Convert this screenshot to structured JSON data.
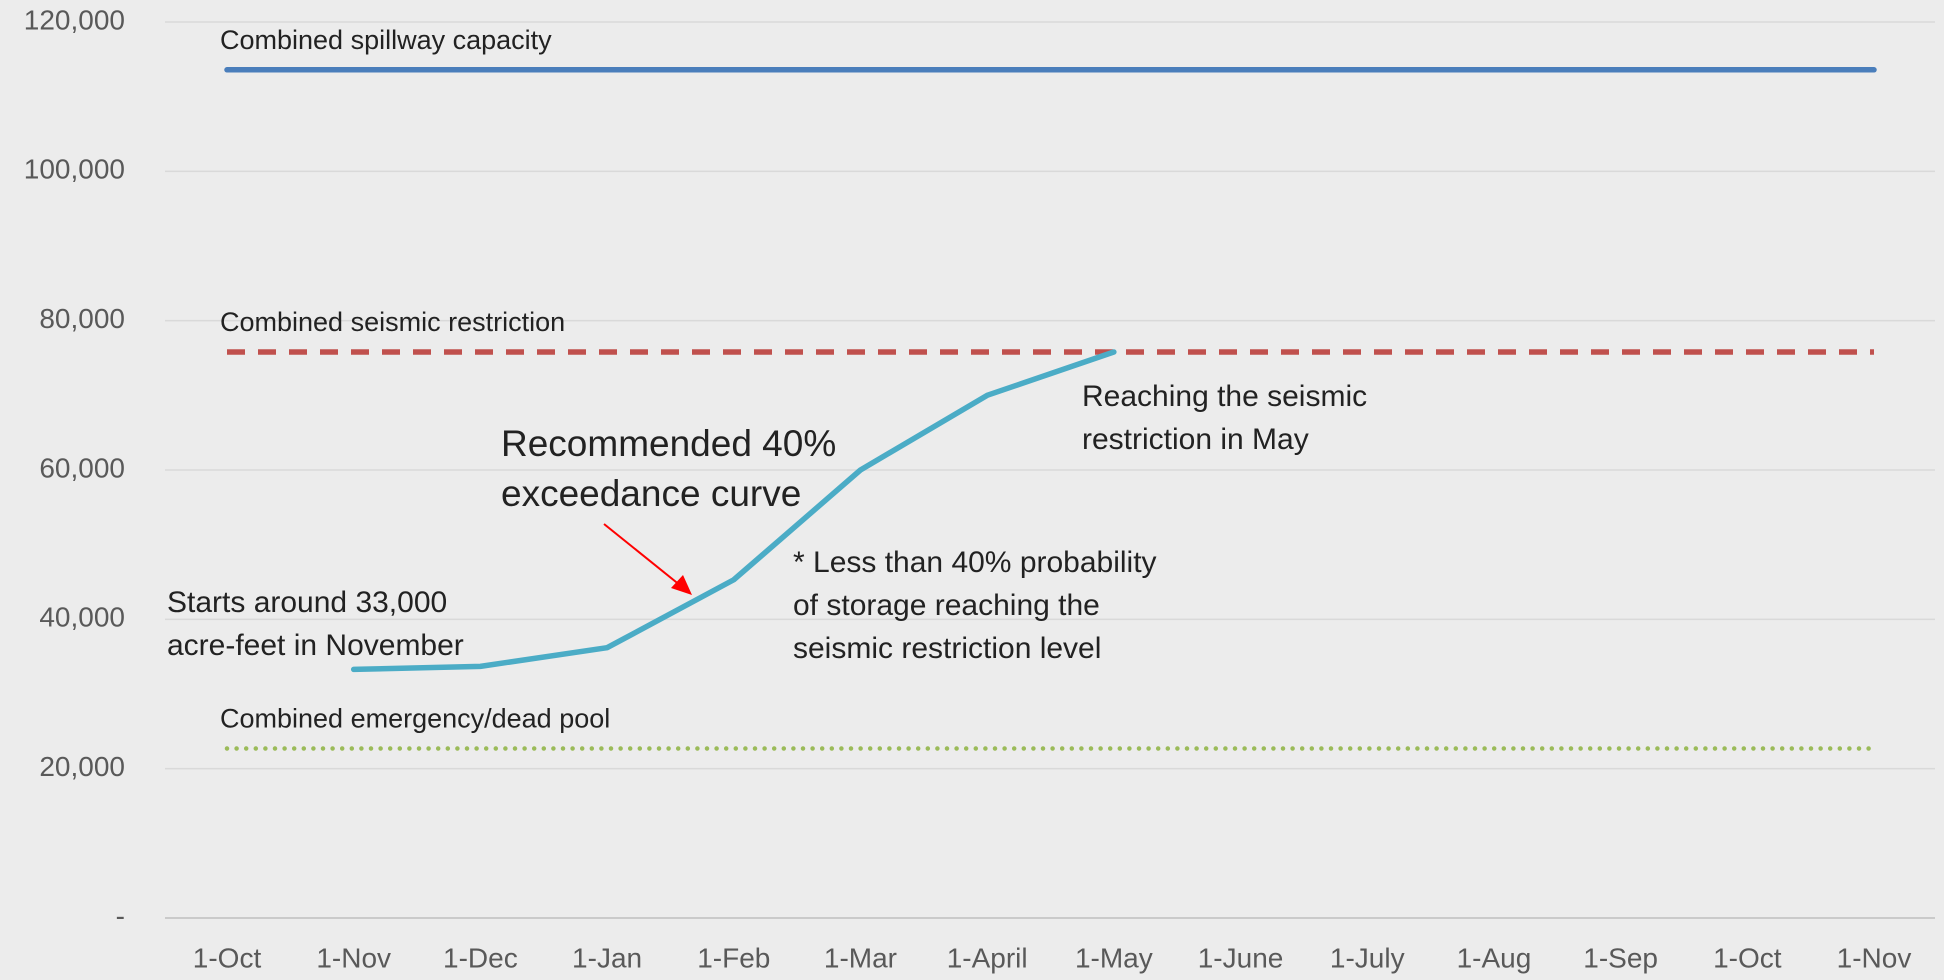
{
  "chart_data": {
    "type": "line",
    "categories": [
      "1-Oct",
      "1-Nov",
      "1-Dec",
      "1-Jan",
      "1-Feb",
      "1-Mar",
      "1-April",
      "1-May",
      "1-June",
      "1-July",
      "1-Aug",
      "1-Sep",
      "1-Oct",
      "1-Nov"
    ],
    "ylim": [
      0,
      120000
    ],
    "yticks": [
      {
        "value": 0,
        "label": "-"
      },
      {
        "value": 20000,
        "label": "20,000"
      },
      {
        "value": 40000,
        "label": "40,000"
      },
      {
        "value": 60000,
        "label": "60,000"
      },
      {
        "value": 80000,
        "label": "80,000"
      },
      {
        "value": 100000,
        "label": "100,000"
      },
      {
        "value": 120000,
        "label": "120,000"
      }
    ],
    "grid": true,
    "series": [
      {
        "name": "Combined spillway capacity",
        "color": "#4a7ebb",
        "style": "solid",
        "values": [
          113600,
          113600,
          113600,
          113600,
          113600,
          113600,
          113600,
          113600,
          113600,
          113600,
          113600,
          113600,
          113600,
          113600
        ]
      },
      {
        "name": "Combined seismic restriction",
        "color": "#c0504d",
        "style": "dashed",
        "values": [
          75800,
          75800,
          75800,
          75800,
          75800,
          75800,
          75800,
          75800,
          75800,
          75800,
          75800,
          75800,
          75800,
          75800
        ]
      },
      {
        "name": "Combined emergency/dead pool",
        "color": "#9bbb59",
        "style": "dotted",
        "values": [
          22700,
          22700,
          22700,
          22700,
          22700,
          22700,
          22700,
          22700,
          22700,
          22700,
          22700,
          22700,
          22700,
          22700
        ]
      },
      {
        "color": "#4bacc6",
        "style": "solid",
        "values": [
          null,
          33300,
          33700,
          36200,
          45300,
          60000,
          70000,
          75800,
          null,
          null,
          null,
          null,
          null,
          null
        ]
      }
    ],
    "annotations": [
      [
        "Starts around 33,000",
        "acre-feet in November"
      ],
      [
        "Recommended 40%",
        "exceedance curve"
      ],
      [
        "* Less than 40% probability",
        "of storage reaching the",
        "seismic restriction level"
      ],
      [
        "Reaching the seismic",
        "restriction in May"
      ]
    ]
  }
}
